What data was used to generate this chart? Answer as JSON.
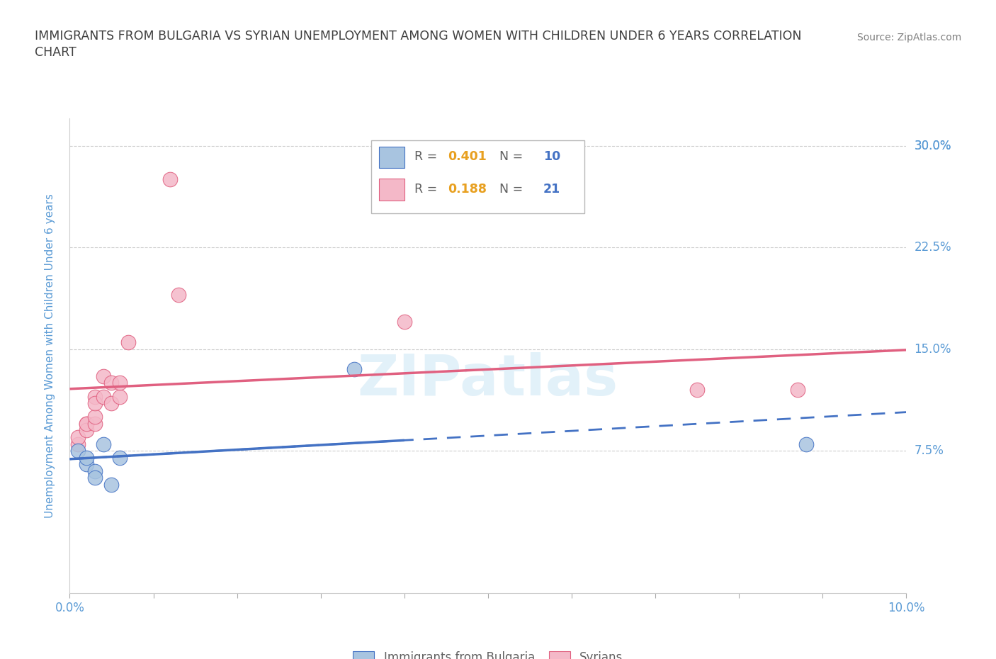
{
  "title_line1": "IMMIGRANTS FROM BULGARIA VS SYRIAN UNEMPLOYMENT AMONG WOMEN WITH CHILDREN UNDER 6 YEARS CORRELATION",
  "title_line2": "CHART",
  "source": "Source: ZipAtlas.com",
  "ylabel": "Unemployment Among Women with Children Under 6 years",
  "xlim": [
    0.0,
    0.1
  ],
  "ylim": [
    -0.03,
    0.32
  ],
  "ytick_positions": [
    0.075,
    0.15,
    0.225,
    0.3
  ],
  "ytick_labels_right": [
    "7.5%",
    "15.0%",
    "22.5%",
    "30.0%"
  ],
  "xtick_positions": [
    0.0,
    0.01,
    0.02,
    0.03,
    0.04,
    0.05,
    0.06,
    0.07,
    0.08,
    0.09,
    0.1
  ],
  "xtick_labels": [
    "0.0%",
    "",
    "",
    "",
    "",
    "",
    "",
    "",
    "",
    "",
    "10.0%"
  ],
  "bulgaria_x": [
    0.001,
    0.002,
    0.002,
    0.003,
    0.003,
    0.004,
    0.005,
    0.006,
    0.034,
    0.088
  ],
  "bulgaria_y": [
    0.075,
    0.065,
    0.07,
    0.06,
    0.055,
    0.08,
    0.05,
    0.07,
    0.135,
    0.08
  ],
  "syria_x": [
    0.001,
    0.001,
    0.002,
    0.002,
    0.002,
    0.003,
    0.003,
    0.003,
    0.003,
    0.004,
    0.004,
    0.005,
    0.005,
    0.006,
    0.006,
    0.007,
    0.012,
    0.013,
    0.04,
    0.075,
    0.087
  ],
  "syria_y": [
    0.08,
    0.085,
    0.095,
    0.09,
    0.095,
    0.095,
    0.1,
    0.115,
    0.11,
    0.115,
    0.13,
    0.125,
    0.11,
    0.115,
    0.125,
    0.155,
    0.275,
    0.19,
    0.17,
    0.12,
    0.12
  ],
  "R_bulgaria": 0.401,
  "N_bulgaria": 10,
  "R_syria": 0.188,
  "N_syria": 21,
  "bulgaria_dot_color": "#a8c4e0",
  "bulgaria_edge_color": "#4472c4",
  "syria_dot_color": "#f4b8c8",
  "syria_edge_color": "#e06080",
  "bulgaria_line_color": "#4472c4",
  "syria_line_color": "#e06080",
  "watermark_text": "ZIPatlas",
  "watermark_color": "#d0e8f5",
  "background_color": "#ffffff",
  "grid_color": "#cccccc",
  "axis_tick_color": "#5b9bd5",
  "ylabel_color": "#5b9bd5",
  "title_color": "#404040",
  "source_color": "#808080",
  "legend_label_bulgaria": "Immigrants from Bulgaria",
  "legend_label_syria": "Syrians",
  "R_color": "#e8a020",
  "N_color": "#4472c4",
  "legend_label_color": "#606060"
}
